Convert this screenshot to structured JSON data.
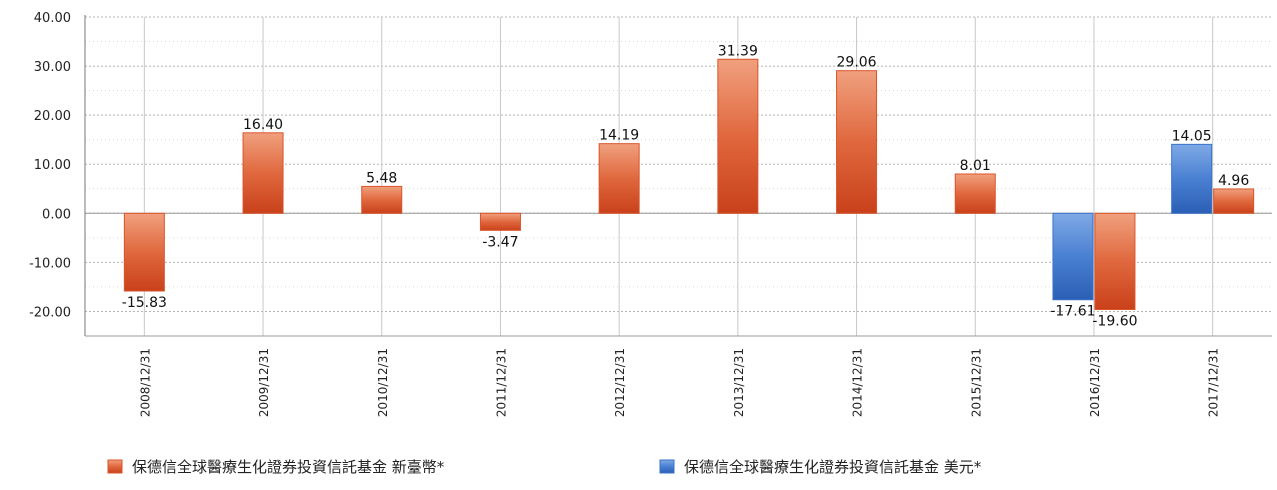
{
  "chart_data": {
    "type": "bar",
    "categories": [
      "2008/12/31",
      "2009/12/31",
      "2010/12/31",
      "2011/12/31",
      "2012/12/31",
      "2013/12/31",
      "2014/12/31",
      "2015/12/31",
      "2016/12/31",
      "2017/12/31"
    ],
    "series": [
      {
        "name": "保德信全球醫療生化證券投資信託基金 美元*",
        "color": "#3a73c9",
        "values": [
          null,
          null,
          null,
          null,
          null,
          null,
          null,
          null,
          -17.61,
          14.05
        ],
        "labels": [
          "",
          "",
          "",
          "",
          "",
          "",
          "",
          "",
          "-17.61",
          "14.05"
        ]
      },
      {
        "name": "保德信全球醫療生化證券投資信託基金 新臺幣*",
        "color": "#d9542a",
        "values": [
          -15.83,
          16.4,
          5.48,
          -3.47,
          14.19,
          31.39,
          29.06,
          8.01,
          -19.6,
          4.96
        ],
        "labels": [
          "-15.83",
          "16.40",
          "5.48",
          "-3.47",
          "14.19",
          "31.39",
          "29.06",
          "8.01",
          "-19.60",
          "4.96"
        ]
      }
    ],
    "ylim": [
      -25,
      40
    ],
    "yticks": [
      "40.00",
      "30.00",
      "20.00",
      "10.00",
      "0.00",
      "-10.00",
      "-20.00"
    ],
    "ytick_values": [
      40,
      30,
      20,
      10,
      0,
      -10,
      -20
    ],
    "grid": true,
    "legend_position": "bottom",
    "legend_order": [
      1,
      0
    ]
  }
}
